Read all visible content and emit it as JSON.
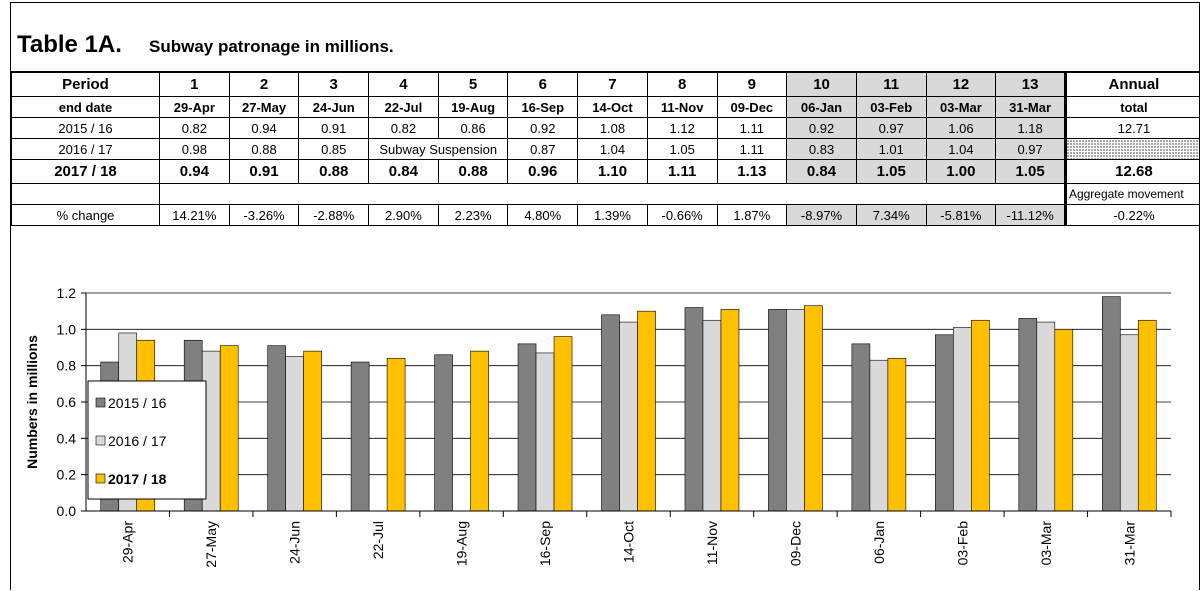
{
  "title": "Table 1A.",
  "subtitle": "Subway patronage in millions.",
  "table": {
    "rows": [
      [
        "Period",
        "1",
        "2",
        "3",
        "4",
        "5",
        "6",
        "7",
        "8",
        "9",
        "10",
        "11",
        "12",
        "13",
        "Annual"
      ],
      [
        "end date",
        "29-Apr",
        "27-May",
        "24-Jun",
        "22-Jul",
        "19-Aug",
        "16-Sep",
        "14-Oct",
        "11-Nov",
        "09-Dec",
        "06-Jan",
        "03-Feb",
        "03-Mar",
        "31-Mar",
        "total"
      ],
      [
        "2015 / 16",
        "0.82",
        "0.94",
        "0.91",
        "0.82",
        "0.86",
        "0.92",
        "1.08",
        "1.12",
        "1.11",
        "0.92",
        "0.97",
        "1.06",
        "1.18",
        "12.71"
      ],
      [
        "2016 / 17",
        "0.98",
        "0.88",
        "0.85",
        "Subway Suspension",
        "0.87",
        "1.04",
        "1.05",
        "1.11",
        "0.83",
        "1.01",
        "1.04",
        "0.97"
      ],
      [
        "2017 / 18",
        "0.94",
        "0.91",
        "0.88",
        "0.84",
        "0.88",
        "0.96",
        "1.10",
        "1.11",
        "1.13",
        "0.84",
        "1.05",
        "1.00",
        "1.05",
        "12.68"
      ],
      [
        "Aggregate movement"
      ],
      [
        "% change",
        "14.21%",
        "-3.26%",
        "-2.88%",
        "2.90%",
        "2.23%",
        "4.80%",
        "1.39%",
        "-0.66%",
        "1.87%",
        "-8.97%",
        "7.34%",
        "-5.81%",
        "-11.12%",
        "-0.22%"
      ]
    ]
  },
  "chart_data": {
    "type": "bar",
    "y_label": "Numbers in millions",
    "categories": [
      "29-Apr",
      "27-May",
      "24-Jun",
      "22-Jul",
      "19-Aug",
      "16-Sep",
      "14-Oct",
      "11-Nov",
      "09-Dec",
      "06-Jan",
      "03-Feb",
      "03-Mar",
      "31-Mar"
    ],
    "series": [
      {
        "name": "2015 / 16",
        "color": "#808080",
        "values": [
          0.82,
          0.94,
          0.91,
          0.82,
          0.86,
          0.92,
          1.08,
          1.12,
          1.11,
          0.92,
          0.97,
          1.06,
          1.18
        ]
      },
      {
        "name": "2016 / 17",
        "color": "#d9d9d9",
        "values": [
          0.98,
          0.88,
          0.85,
          null,
          null,
          0.87,
          1.04,
          1.05,
          1.11,
          0.83,
          1.01,
          1.04,
          0.97
        ]
      },
      {
        "name": "2017 / 18",
        "color": "#ffc000",
        "values": [
          0.94,
          0.91,
          0.88,
          0.84,
          0.88,
          0.96,
          1.1,
          1.11,
          1.13,
          0.84,
          1.05,
          1.0,
          1.05
        ]
      }
    ],
    "ylim": [
      0,
      1.2
    ],
    "yticks": [
      {
        "value": 0,
        "label": "0.0"
      },
      0.2,
      0.4,
      0.6,
      0.8,
      {
        "value": 1,
        "label": "1.0"
      },
      1.2
    ],
    "grid": true,
    "legend": "left"
  }
}
